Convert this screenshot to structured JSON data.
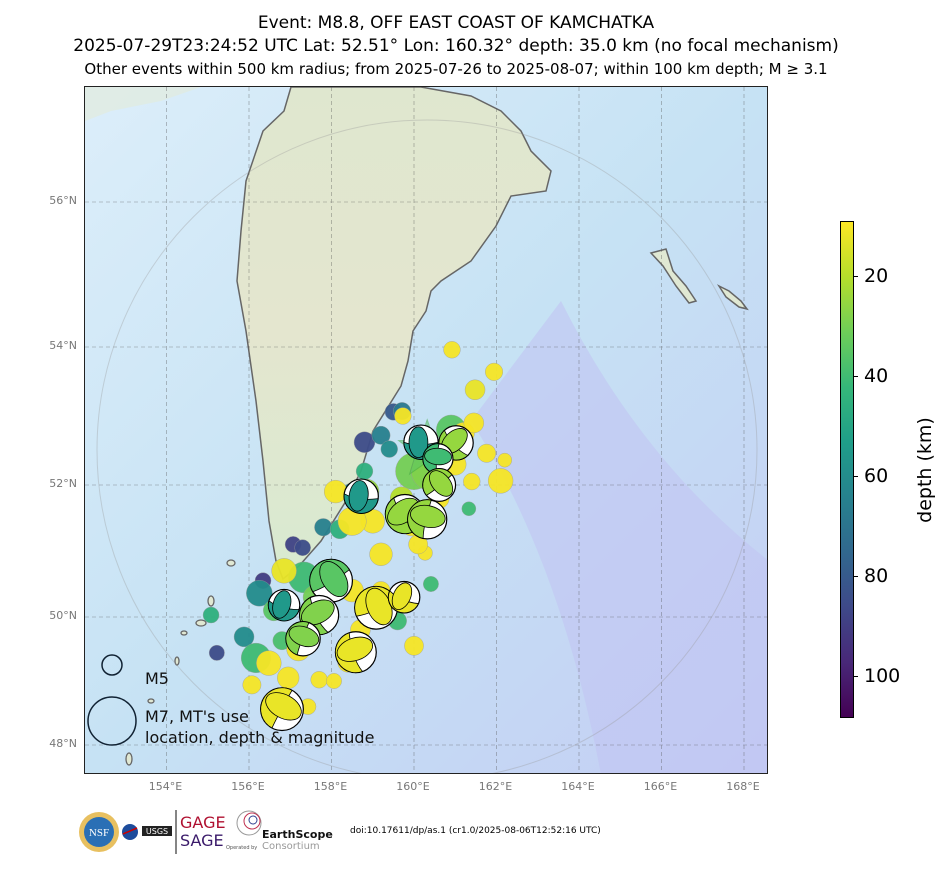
{
  "title": {
    "line1": "Event: M8.8, OFF EAST COAST OF KAMCHATKA",
    "line2": "2025-07-29T23:24:52 UTC Lat: 52.51° Lon: 160.32° depth: 35.0 km (no focal mechanism)",
    "line3": "Other events within 500 km radius; from 2025-07-26 to 2025-08-07; within 100 km depth; M ≥ 3.1"
  },
  "map": {
    "lon_ticks": [
      "154°E",
      "156°E",
      "158°E",
      "160°E",
      "162°E",
      "164°E",
      "166°E",
      "168°E"
    ],
    "lat_ticks": [
      "56°N",
      "54°N",
      "52°N",
      "50°N",
      "48°N"
    ],
    "mainshock": {
      "lon": 160.32,
      "lat": 52.51,
      "depth": 35.0,
      "mag": 8.8,
      "symbol": "star"
    },
    "events": [
      [
        160.92,
        53.96,
        10,
        4.6
      ],
      [
        161.94,
        53.64,
        10,
        4.7
      ],
      [
        161.48,
        53.38,
        12,
        5.0
      ],
      [
        159.71,
        53.07,
        68,
        4.7
      ],
      [
        159.73,
        53.0,
        10,
        4.6
      ],
      [
        159.5,
        53.06,
        80,
        4.6
      ],
      [
        158.8,
        52.62,
        85,
        5.1
      ],
      [
        159.2,
        52.72,
        65,
        4.8
      ],
      [
        159.4,
        52.52,
        60,
        4.6
      ],
      [
        158.8,
        52.2,
        45,
        4.6
      ],
      [
        160.4,
        52.2,
        28,
        6.5
      ],
      [
        162.1,
        52.06,
        10,
        5.5
      ],
      [
        161.76,
        52.46,
        10,
        4.8
      ],
      [
        162.2,
        52.36,
        10,
        4.2
      ],
      [
        161.33,
        51.64,
        40,
        4.2
      ],
      [
        160.27,
        50.97,
        10,
        4.3
      ],
      [
        158.47,
        51.91,
        60,
        4.4
      ],
      [
        158.2,
        51.33,
        45,
        4.9
      ],
      [
        157.8,
        51.36,
        65,
        4.7
      ],
      [
        157.3,
        51.05,
        85,
        4.5
      ],
      [
        157.07,
        51.1,
        88,
        4.5
      ],
      [
        156.34,
        50.55,
        90,
        4.5
      ],
      [
        156.25,
        50.36,
        60,
        5.6
      ],
      [
        155.08,
        50.03,
        45,
        4.5
      ],
      [
        155.88,
        49.69,
        60,
        5.0
      ],
      [
        155.22,
        49.44,
        85,
        4.4
      ],
      [
        156.17,
        49.36,
        40,
        5.9
      ],
      [
        156.48,
        49.28,
        10,
        5.5
      ],
      [
        156.07,
        48.94,
        10,
        4.8
      ],
      [
        157.43,
        48.6,
        10,
        4.5
      ],
      [
        157.7,
        49.02,
        10,
        4.6
      ],
      [
        158.06,
        49.0,
        10,
        4.4
      ],
      [
        160.0,
        49.55,
        10,
        4.9
      ],
      [
        157.33,
        50.6,
        40,
        6.0
      ],
      [
        156.85,
        50.7,
        12,
        5.5
      ],
      [
        158.1,
        50.62,
        40,
        5.2
      ],
      [
        159.0,
        51.45,
        10,
        5.4
      ],
      [
        158.5,
        51.45,
        10,
        5.8
      ],
      [
        160.9,
        52.8,
        35,
        5.9
      ],
      [
        160.0,
        52.2,
        30,
        6.4
      ],
      [
        160.41,
        50.5,
        40,
        4.4
      ],
      [
        159.6,
        49.94,
        40,
        4.8
      ],
      [
        156.8,
        49.63,
        38,
        4.8
      ],
      [
        157.4,
        49.63,
        10,
        4.9
      ],
      [
        161.2,
        52.75,
        10,
        5.2
      ],
      [
        161.45,
        52.9,
        10,
        5.0
      ],
      [
        160.7,
        52.0,
        10,
        5.0
      ],
      [
        159.95,
        51.4,
        10,
        5.3
      ],
      [
        159.2,
        50.95,
        10,
        5.3
      ],
      [
        158.5,
        50.4,
        10,
        5.3
      ],
      [
        157.75,
        50.1,
        10,
        5.1
      ],
      [
        157.2,
        49.5,
        10,
        5.4
      ],
      [
        156.95,
        49.05,
        10,
        5.2
      ],
      [
        158.7,
        49.8,
        10,
        5.0
      ],
      [
        159.2,
        50.4,
        10,
        4.8
      ],
      [
        158.4,
        49.3,
        10,
        5.1
      ],
      [
        161.0,
        52.3,
        10,
        5.2
      ],
      [
        161.4,
        52.05,
        10,
        4.6
      ],
      [
        160.6,
        51.8,
        10,
        5.1
      ],
      [
        160.1,
        51.1,
        10,
        4.9
      ],
      [
        158.1,
        51.9,
        10,
        5.3
      ],
      [
        157.6,
        50.3,
        30,
        5.4
      ],
      [
        156.6,
        50.1,
        35,
        5.1
      ],
      [
        158.85,
        51.9,
        25,
        5.5
      ],
      [
        159.7,
        51.8,
        20,
        5.3
      ]
    ],
    "moment_tensors": [
      [
        160.17,
        52.62,
        55,
        6.6
      ],
      [
        161.02,
        52.61,
        25,
        6.6
      ],
      [
        160.58,
        52.38,
        40,
        6.3
      ],
      [
        160.61,
        52.0,
        25,
        6.5
      ],
      [
        158.72,
        51.83,
        55,
        6.6
      ],
      [
        159.78,
        51.56,
        25,
        6.9
      ],
      [
        160.32,
        51.48,
        25,
        6.9
      ],
      [
        157.99,
        50.55,
        35,
        7.1
      ],
      [
        156.85,
        50.18,
        55,
        6.4
      ],
      [
        157.7,
        50.03,
        28,
        6.9
      ],
      [
        157.31,
        49.66,
        28,
        6.6
      ],
      [
        159.08,
        50.14,
        12,
        7.1
      ],
      [
        159.76,
        50.3,
        12,
        6.4
      ],
      [
        158.59,
        49.45,
        12,
        7.0
      ],
      [
        156.8,
        48.56,
        12,
        7.1
      ]
    ],
    "legend": {
      "m5": "M5",
      "m7_line1": "M7, MT's use",
      "m7_line2": "location, depth & magnitude"
    }
  },
  "colorbar": {
    "label": "depth (km)",
    "ticks": [
      "20",
      "40",
      "60",
      "80",
      "100"
    ],
    "range": [
      9,
      108
    ],
    "colormap": "viridis",
    "reversed": true
  },
  "footer": {
    "logos": [
      "NSF",
      "NASA",
      "USGS",
      "GAGE",
      "SAGE",
      "EarthScope Consortium"
    ],
    "gage": "GAGE",
    "sage": "SAGE",
    "earthscope": "EarthScope",
    "consortium": "Consortium",
    "operated": "Operated by",
    "doi": "doi:10.17611/dp/as.1 (cr1.0/2025-08-06T12:52:16 UTC)"
  }
}
